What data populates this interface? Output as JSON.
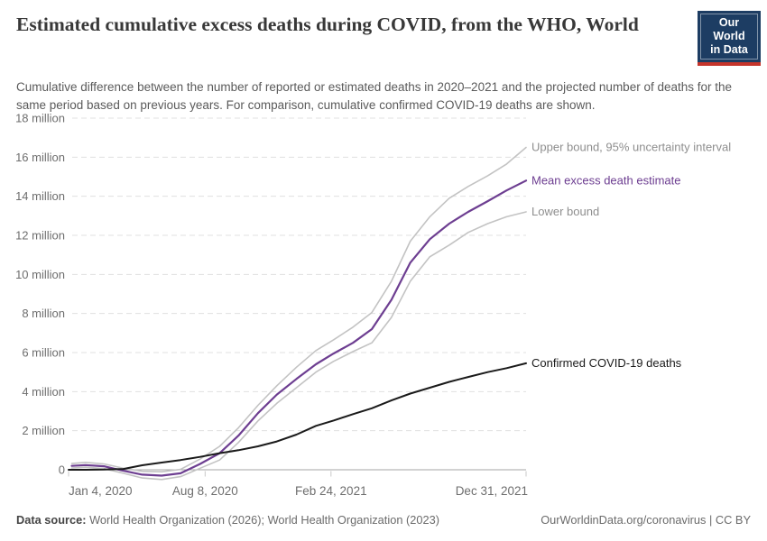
{
  "header": {
    "title": "Estimated cumulative excess deaths during COVID, from the WHO, World",
    "subtitle": "Cumulative difference between the number of reported or estimated deaths in 2020–2021 and the projected number of deaths for the same period based on previous years. For comparison, cumulative confirmed COVID-19 deaths are shown.",
    "logo": {
      "line1": "Our World",
      "line2": "in Data",
      "bg_color": "#1d3d63",
      "bar_color": "#c5342b"
    }
  },
  "footer": {
    "datasource_label": "Data source:",
    "datasource_text": " World Health Organization (2026); World Health Organization (2023)",
    "license_text": "OurWorldinData.org/coronavirus | CC BY"
  },
  "chart_data": {
    "type": "line",
    "title": "Estimated cumulative excess deaths during COVID, from the WHO, World",
    "unit": "million deaths",
    "ylim": [
      0,
      18
    ],
    "grid": "dashed-horizontal",
    "legend_position": "right-of-line-ends",
    "x_axis": {
      "total_days": 727,
      "ticks": [
        {
          "label": "Jan 4, 2020",
          "day": 0,
          "align": "start"
        },
        {
          "label": "Aug 8, 2020",
          "day": 217,
          "align": "middle"
        },
        {
          "label": "Feb 24, 2021",
          "day": 417,
          "align": "middle"
        },
        {
          "label": "Dec 31, 2021",
          "day": 727,
          "align": "end"
        }
      ]
    },
    "y_axis": {
      "ticks": [
        {
          "label": "0",
          "value": 0
        },
        {
          "label": "2 million",
          "value": 2
        },
        {
          "label": "4 million",
          "value": 4
        },
        {
          "label": "6 million",
          "value": 6
        },
        {
          "label": "8 million",
          "value": 8
        },
        {
          "label": "10 million",
          "value": 10
        },
        {
          "label": "12 million",
          "value": 12
        },
        {
          "label": "14 million",
          "value": 14
        },
        {
          "label": "16 million",
          "value": 16
        },
        {
          "label": "18 million",
          "value": 18
        }
      ]
    },
    "series": [
      {
        "name": "Upper bound, 95% uncertainty interval",
        "color": "#c3c3c3",
        "label_color": "#8e8e8e",
        "width": 1.6,
        "days": [
          5,
          27,
          56,
          87,
          117,
          148,
          178,
          209,
          240,
          270,
          301,
          331,
          362,
          393,
          421,
          452,
          482,
          513,
          543,
          574,
          605,
          635,
          666,
          696,
          727
        ],
        "values": [
          0.32,
          0.38,
          0.3,
          0.08,
          -0.08,
          -0.1,
          0.02,
          0.55,
          1.2,
          2.15,
          3.3,
          4.3,
          5.25,
          6.1,
          6.65,
          7.3,
          8.05,
          9.65,
          11.7,
          12.95,
          13.9,
          14.5,
          15.05,
          15.65,
          16.5
        ]
      },
      {
        "name": "Lower bound",
        "color": "#c3c3c3",
        "label_color": "#8e8e8e",
        "width": 1.6,
        "days": [
          5,
          27,
          56,
          87,
          117,
          148,
          178,
          209,
          240,
          270,
          301,
          331,
          362,
          393,
          421,
          452,
          482,
          513,
          543,
          574,
          605,
          635,
          666,
          696,
          727
        ],
        "values": [
          0.09,
          0.13,
          0.06,
          -0.18,
          -0.42,
          -0.5,
          -0.35,
          0.08,
          0.5,
          1.4,
          2.5,
          3.4,
          4.2,
          5.0,
          5.55,
          6.05,
          6.5,
          7.8,
          9.65,
          10.9,
          11.5,
          12.15,
          12.6,
          12.95,
          13.2
        ]
      },
      {
        "name": "Mean excess death estimate",
        "color": "#6d3e91",
        "label_color": "#6d3e91",
        "width": 2.2,
        "days": [
          5,
          27,
          56,
          87,
          117,
          148,
          178,
          209,
          240,
          270,
          301,
          331,
          362,
          393,
          421,
          452,
          482,
          513,
          543,
          574,
          605,
          635,
          666,
          696,
          727
        ],
        "values": [
          0.2,
          0.24,
          0.18,
          -0.05,
          -0.25,
          -0.3,
          -0.18,
          0.3,
          0.85,
          1.75,
          2.9,
          3.85,
          4.65,
          5.4,
          5.95,
          6.5,
          7.2,
          8.7,
          10.6,
          11.8,
          12.6,
          13.2,
          13.75,
          14.3,
          14.8
        ]
      },
      {
        "name": "Confirmed COVID-19 deaths",
        "color": "#1a1a1a",
        "label_color": "#1a1a1a",
        "width": 2,
        "days": [
          0,
          27,
          56,
          87,
          117,
          148,
          178,
          209,
          240,
          270,
          301,
          331,
          362,
          393,
          421,
          452,
          482,
          513,
          543,
          574,
          605,
          635,
          666,
          696,
          727
        ],
        "values": [
          0.0,
          0.0,
          0.01,
          0.04,
          0.23,
          0.37,
          0.5,
          0.66,
          0.85,
          1.0,
          1.2,
          1.45,
          1.8,
          2.25,
          2.52,
          2.85,
          3.15,
          3.55,
          3.9,
          4.2,
          4.5,
          4.75,
          5.0,
          5.2,
          5.45
        ]
      }
    ]
  }
}
